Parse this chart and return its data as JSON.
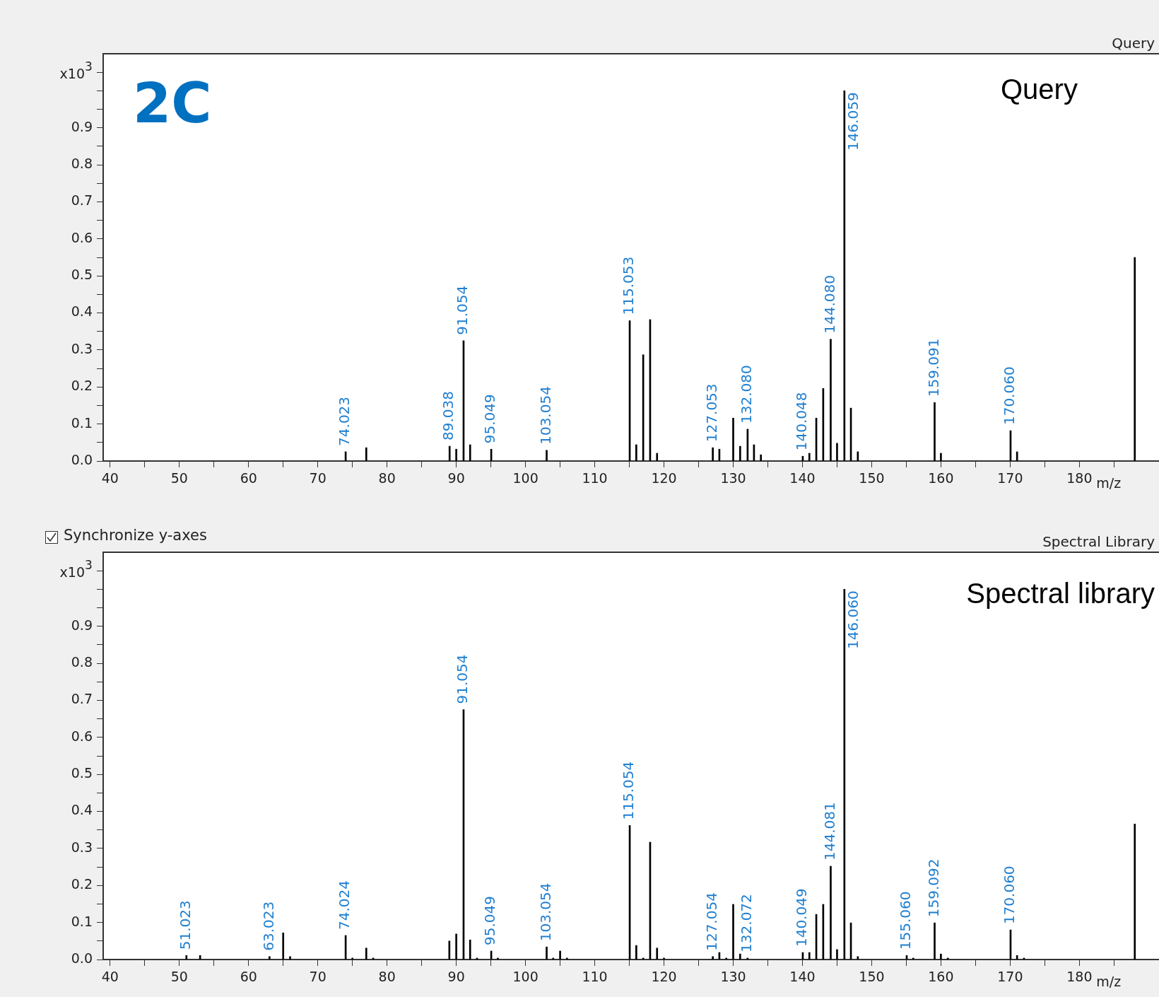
{
  "chart_data": [
    {
      "type": "bar",
      "title": "Query",
      "xlabel": "m/z",
      "ylabel": "x10$^{3}$",
      "color": "#000000",
      "x": [
        74.023,
        77,
        89.038,
        90,
        91.054,
        92,
        95.049,
        103.054,
        115.053,
        116,
        117,
        118,
        119,
        127.053,
        128,
        130,
        131,
        132.08,
        133,
        134,
        140.048,
        141,
        142,
        143,
        144.08,
        145,
        146.059,
        147,
        148,
        159.091,
        160,
        170.06,
        171,
        188
      ],
      "values": [
        0.025,
        0.036,
        0.04,
        0.032,
        0.325,
        0.044,
        0.032,
        0.029,
        0.379,
        0.044,
        0.287,
        0.382,
        0.021,
        0.036,
        0.032,
        0.116,
        0.04,
        0.086,
        0.044,
        0.017,
        0.013,
        0.021,
        0.116,
        0.196,
        0.329,
        0.048,
        1.0,
        0.143,
        0.025,
        0.158,
        0.021,
        0.082,
        0.025,
        0.55
      ],
      "xlim": [
        39,
        191.5
      ],
      "ylim": [
        0,
        1.1
      ],
      "xticks": [
        40,
        {
          "value": 45,
          "label": null
        },
        50,
        {
          "value": 55,
          "label": null
        },
        60,
        {
          "value": 65,
          "label": null
        },
        70,
        {
          "value": 75,
          "label": null
        },
        80,
        {
          "value": 85,
          "label": null
        },
        90,
        {
          "value": 95,
          "label": null
        },
        100,
        {
          "value": 105,
          "label": null
        },
        110,
        {
          "value": 115,
          "label": null
        },
        120,
        {
          "value": 125,
          "label": null
        },
        130,
        {
          "value": 135,
          "label": null
        },
        140,
        {
          "value": 145,
          "label": null
        },
        150,
        {
          "value": 155,
          "label": null
        },
        160,
        {
          "value": 165,
          "label": null
        },
        170,
        {
          "value": 175,
          "label": null
        },
        180,
        {
          "value": 185,
          "label": null
        }
      ],
      "yticks": [
        {
          "value": 0,
          "label": "0.0"
        },
        {
          "value": 0.05,
          "label": null
        },
        {
          "value": 0.1,
          "label": "0.1"
        },
        {
          "value": 0.15,
          "label": null
        },
        {
          "value": 0.2,
          "label": "0.2"
        },
        {
          "value": 0.25,
          "label": null
        },
        {
          "value": 0.3,
          "label": "0.3"
        },
        {
          "value": 0.35,
          "label": null
        },
        {
          "value": 0.4,
          "label": "0.4"
        },
        {
          "value": 0.45,
          "label": null
        },
        {
          "value": 0.5,
          "label": "0.5"
        },
        {
          "value": 0.55,
          "label": null
        },
        {
          "value": 0.6,
          "label": "0.6"
        },
        {
          "value": 0.65,
          "label": null
        },
        {
          "value": 0.7,
          "label": "0.7"
        },
        {
          "value": 0.75,
          "label": null
        },
        {
          "value": 0.8,
          "label": "0.8"
        },
        {
          "value": 0.85,
          "label": null
        },
        {
          "value": 0.9,
          "label": "0.9"
        },
        {
          "value": 0.95,
          "label": null
        },
        {
          "value": 1.0,
          "label": null
        },
        {
          "value": 1.05,
          "label": null
        }
      ],
      "annotations": [
        "2C",
        "Query",
        {
          "text": "74.023",
          "x": 74.023,
          "y": 0.025
        },
        {
          "text": "89.038",
          "x": 89.038,
          "y": 0.04
        },
        {
          "text": "91.054",
          "x": 91.054,
          "y": 0.325
        },
        {
          "text": "95.049",
          "x": 95.049,
          "y": 0.032
        },
        {
          "text": "103.054",
          "x": 103.054,
          "y": 0.029
        },
        {
          "text": "115.053",
          "x": 115.053,
          "y": 0.379
        },
        {
          "text": "127.053",
          "x": 127.053,
          "y": 0.036
        },
        {
          "text": "132.080",
          "x": 132.08,
          "y": 0.086
        },
        {
          "text": "140.048",
          "x": 140.048,
          "y": 0.013
        },
        {
          "text": "144.080",
          "x": 144.08,
          "y": 0.329
        },
        {
          "text": "146.059",
          "x": 146.059,
          "y": 1.0
        },
        {
          "text": "159.091",
          "x": 159.091,
          "y": 0.158
        },
        {
          "text": "170.060",
          "x": 170.06,
          "y": 0.082
        }
      ]
    },
    {
      "type": "bar",
      "title": "Spectral Library",
      "xlabel": "m/z",
      "ylabel": "x10$^{3}$",
      "color": "#000000",
      "x": [
        51.023,
        53,
        63.023,
        65,
        66,
        74.024,
        75,
        77,
        78,
        89,
        90,
        91.054,
        92,
        93,
        95.049,
        96,
        103.054,
        104,
        105,
        106,
        115.054,
        116,
        117,
        118,
        119,
        120,
        127.054,
        128,
        129,
        130,
        131,
        132.072,
        140.049,
        141,
        142,
        143,
        144.081,
        145,
        146.06,
        147,
        148,
        155.06,
        156,
        159.092,
        160,
        161,
        170.06,
        171,
        172,
        188
      ],
      "values": [
        0.011,
        0.011,
        0.008,
        0.072,
        0.008,
        0.065,
        0.004,
        0.031,
        0.004,
        0.05,
        0.069,
        0.675,
        0.053,
        0.004,
        0.023,
        0.004,
        0.034,
        0.004,
        0.023,
        0.004,
        0.362,
        0.038,
        0.004,
        0.317,
        0.031,
        0.004,
        0.008,
        0.019,
        0.004,
        0.149,
        0.015,
        0.004,
        0.019,
        0.019,
        0.122,
        0.149,
        0.252,
        0.027,
        1.0,
        0.099,
        0.008,
        0.011,
        0.004,
        0.099,
        0.015,
        0.004,
        0.08,
        0.011,
        0.004,
        0.366
      ],
      "xlim": [
        39,
        191.5
      ],
      "ylim": [
        0,
        1.1
      ],
      "xticks": [
        40,
        {
          "value": 45,
          "label": null
        },
        50,
        {
          "value": 55,
          "label": null
        },
        60,
        {
          "value": 65,
          "label": null
        },
        70,
        {
          "value": 75,
          "label": null
        },
        80,
        {
          "value": 85,
          "label": null
        },
        90,
        {
          "value": 95,
          "label": null
        },
        100,
        {
          "value": 105,
          "label": null
        },
        110,
        {
          "value": 115,
          "label": null
        },
        120,
        {
          "value": 125,
          "label": null
        },
        130,
        {
          "value": 135,
          "label": null
        },
        140,
        {
          "value": 145,
          "label": null
        },
        150,
        {
          "value": 155,
          "label": null
        },
        160,
        {
          "value": 165,
          "label": null
        },
        170,
        {
          "value": 175,
          "label": null
        },
        180,
        {
          "value": 185,
          "label": null
        }
      ],
      "yticks": [
        {
          "value": 0,
          "label": "0.0"
        },
        {
          "value": 0.05,
          "label": null
        },
        {
          "value": 0.1,
          "label": "0.1"
        },
        {
          "value": 0.15,
          "label": null
        },
        {
          "value": 0.2,
          "label": "0.2"
        },
        {
          "value": 0.25,
          "label": null
        },
        {
          "value": 0.3,
          "label": "0.3"
        },
        {
          "value": 0.35,
          "label": null
        },
        {
          "value": 0.4,
          "label": "0.4"
        },
        {
          "value": 0.45,
          "label": null
        },
        {
          "value": 0.5,
          "label": "0.5"
        },
        {
          "value": 0.55,
          "label": null
        },
        {
          "value": 0.6,
          "label": "0.6"
        },
        {
          "value": 0.65,
          "label": null
        },
        {
          "value": 0.7,
          "label": "0.7"
        },
        {
          "value": 0.75,
          "label": null
        },
        {
          "value": 0.8,
          "label": "0.8"
        },
        {
          "value": 0.85,
          "label": null
        },
        {
          "value": 0.9,
          "label": "0.9"
        },
        {
          "value": 0.95,
          "label": null
        },
        {
          "value": 1.0,
          "label": null
        },
        {
          "value": 1.05,
          "label": null
        }
      ],
      "annotations": [
        "Synchronize y-axes",
        "Spectral library",
        {
          "text": "51.023",
          "x": 51.023,
          "y": 0.011
        },
        {
          "text": "63.023",
          "x": 63.023,
          "y": 0.008
        },
        {
          "text": "74.024",
          "x": 74.024,
          "y": 0.065
        },
        {
          "text": "91.054",
          "x": 91.054,
          "y": 0.675
        },
        {
          "text": "95.049",
          "x": 95.049,
          "y": 0.023
        },
        {
          "text": "103.054",
          "x": 103.054,
          "y": 0.034
        },
        {
          "text": "115.054",
          "x": 115.054,
          "y": 0.362
        },
        {
          "text": "127.054",
          "x": 127.054,
          "y": 0.008
        },
        {
          "text": "132.072",
          "x": 132.072,
          "y": 0.004
        },
        {
          "text": "140.049",
          "x": 140.049,
          "y": 0.019
        },
        {
          "text": "144.081",
          "x": 144.081,
          "y": 0.252
        },
        {
          "text": "146.060",
          "x": 146.06,
          "y": 1.0
        },
        {
          "text": "155.060",
          "x": 155.06,
          "y": 0.011
        },
        {
          "text": "159.092",
          "x": 159.092,
          "y": 0.099
        },
        {
          "text": "170.060",
          "x": 170.06,
          "y": 0.08
        }
      ]
    }
  ]
}
